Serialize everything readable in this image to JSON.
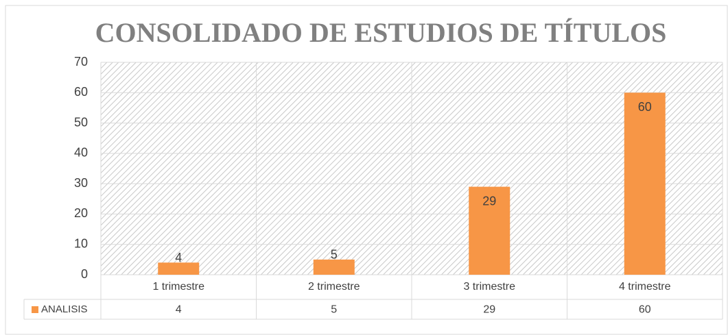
{
  "chart_data": {
    "type": "bar",
    "title": "CONSOLIDADO DE ESTUDIOS DE TÍTULOS",
    "categories": [
      "1 trimestre",
      "2 trimestre",
      "3 trimestre",
      "4 trimestre"
    ],
    "series": [
      {
        "name": "ANALISIS",
        "color": "#f79646",
        "values": [
          4,
          5,
          29,
          60
        ]
      }
    ],
    "ylim": [
      0,
      70
    ],
    "yticks": [
      0,
      10,
      20,
      30,
      40,
      50,
      60,
      70
    ],
    "grid": true,
    "data_table": true
  }
}
